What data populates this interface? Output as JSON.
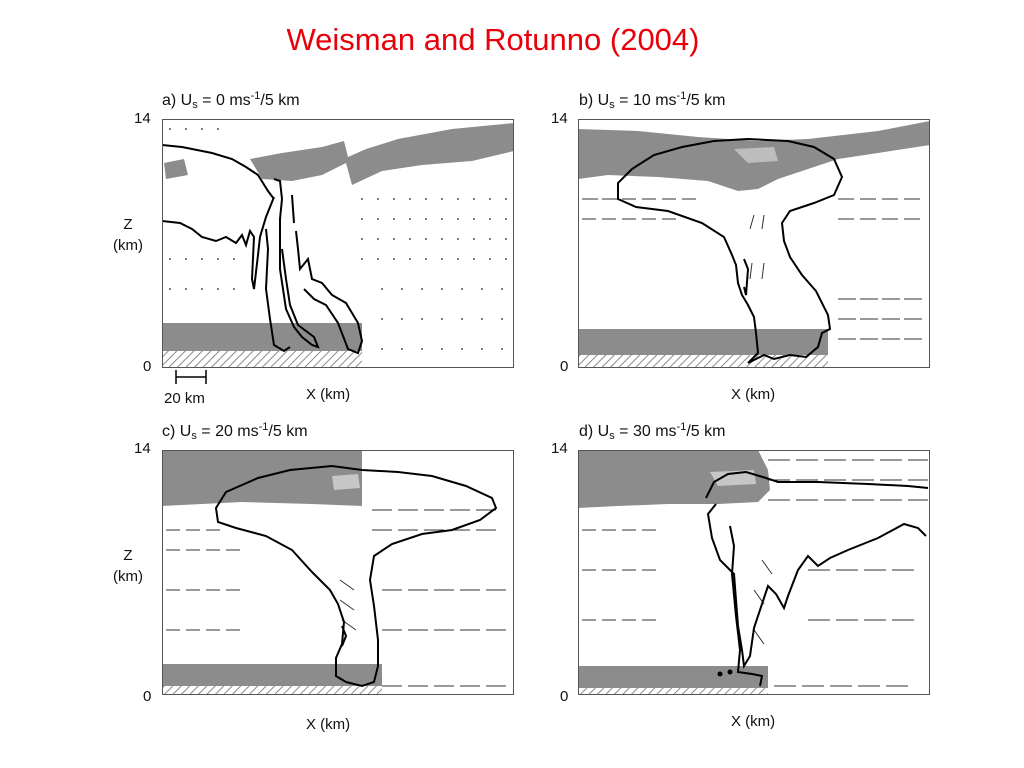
{
  "title": "Weisman and Rotunno (2004)",
  "colors": {
    "title": "#e8000b",
    "shade": "#8c8c8c",
    "contour": "#000000",
    "hatch": "#9a9a9a"
  },
  "scale_bar_label": "20 km",
  "panels": [
    {
      "id": "a",
      "prefix": "a) U",
      "sub": "s",
      "mid": " = 0 ms",
      "sup": "-1",
      "suffix": "/5 km",
      "z_top": "14",
      "z_bottom": "0",
      "z_label": "Z",
      "z_unit": "(km)",
      "x_label": "X (km)"
    },
    {
      "id": "b",
      "prefix": "b) U",
      "sub": "s",
      "mid": " = 10 ms",
      "sup": "-1",
      "suffix": "/5 km",
      "z_top": "14",
      "z_bottom": "0",
      "x_label": "X (km)"
    },
    {
      "id": "c",
      "prefix": "c) U",
      "sub": "s",
      "mid": " = 20 ms",
      "sup": "-1",
      "suffix": "/5 km",
      "z_top": "14",
      "z_bottom": "0",
      "z_label": "Z",
      "z_unit": "(km)",
      "x_label": "X (km)"
    },
    {
      "id": "d",
      "prefix": "d) U",
      "sub": "s",
      "mid": " = 30 ms",
      "sup": "-1",
      "suffix": "/5 km",
      "z_top": "14",
      "z_bottom": "0",
      "x_label": "X (km)"
    }
  ]
}
